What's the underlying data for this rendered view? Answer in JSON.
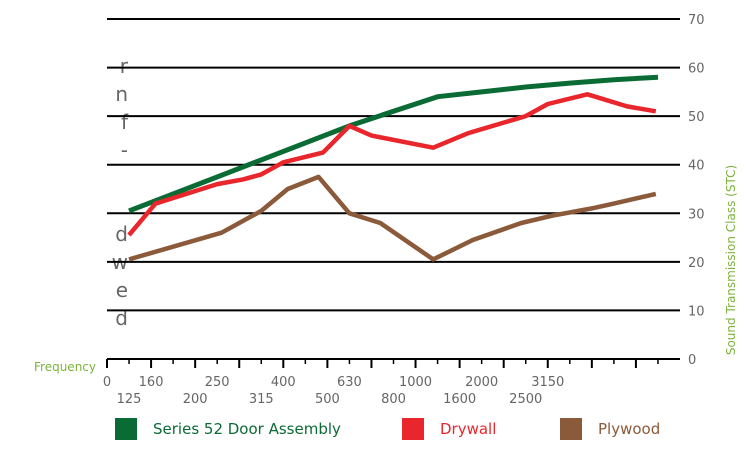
{
  "left_text_fragments": [
    "r",
    "n",
    "f",
    "-",
    "",
    "",
    "d",
    "w",
    "e",
    "d"
  ],
  "colors": {
    "text_gray": "#666666",
    "axis_label_green": "#7db33c",
    "series_green": "#0b6b35",
    "series_red": "#e8262c",
    "series_brown": "#8a5a3a"
  },
  "chart_data": {
    "type": "line",
    "xlabel": "Frequency",
    "ylabel": "Sound Transmission Class (STC)",
    "ylim": [
      0,
      70
    ],
    "y_ticks": [
      0,
      10,
      20,
      30,
      40,
      50,
      60,
      70
    ],
    "grid": true,
    "x_range": [
      0,
      26
    ],
    "x_tick_labels_upper": [
      "0",
      "160",
      "250",
      "400",
      "630",
      "1000",
      "2000",
      "3150"
    ],
    "x_tick_labels_lower": [
      "125",
      "200",
      "315",
      "500",
      "800",
      "1600",
      "2500"
    ],
    "series": [
      {
        "name": "Series 52 Door Assembly",
        "color": "#0b6b35",
        "x": [
          1,
          3,
          5,
          7,
          9,
          11,
          13,
          15,
          17,
          19,
          21,
          23,
          25
        ],
        "values": [
          30.5,
          34,
          37.5,
          41,
          44.5,
          48,
          51,
          54,
          55,
          56,
          56.8,
          57.5,
          58
        ]
      },
      {
        "name": "Drywall",
        "color": "#e8262c",
        "x": [
          1,
          2.2,
          5,
          6.2,
          7,
          8,
          9.8,
          11,
          12,
          14.8,
          16.4,
          19,
          20,
          21.8,
          23.6,
          24.9
        ],
        "values": [
          25.5,
          32,
          36,
          37,
          38,
          40.5,
          42.5,
          48,
          46,
          43.5,
          46.5,
          50,
          52.5,
          54.5,
          52,
          51
        ]
      },
      {
        "name": "Plywood",
        "color": "#8a5a3a",
        "x": [
          1,
          5.2,
          7,
          8.2,
          9.6,
          11,
          12.4,
          14.8,
          16.6,
          18.8,
          20.2,
          22,
          23,
          24.9
        ],
        "values": [
          20.5,
          26,
          30.5,
          35,
          37.5,
          30,
          28,
          20.5,
          24.5,
          28,
          29.5,
          31,
          32,
          34
        ]
      }
    ]
  }
}
